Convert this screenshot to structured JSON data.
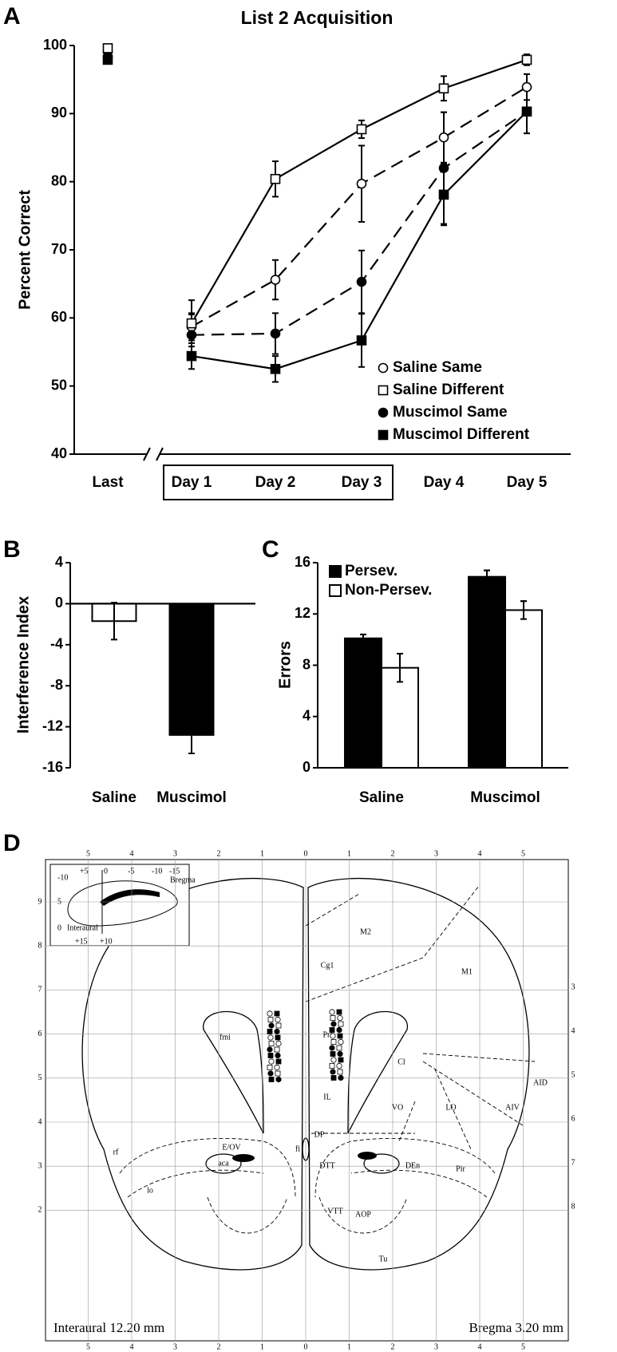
{
  "chart_data": [
    {
      "panel": "A",
      "type": "line",
      "title": "List 2 Acquisition",
      "ylabel": "Percent Correct",
      "categories": [
        "Last",
        "Day 1",
        "Day 2",
        "Day 3",
        "Day 4",
        "Day 5"
      ],
      "series": [
        {
          "name": "Saline Same",
          "color": "#000000",
          "marker": "circle",
          "filled": false,
          "linestyle": "dashed",
          "values": [
            99.1,
            58.7,
            65.6,
            79.7,
            86.5,
            93.9
          ],
          "errors": [
            0.5,
            2.0,
            2.9,
            5.6,
            3.7,
            1.9
          ]
        },
        {
          "name": "Saline Different",
          "color": "#000000",
          "marker": "square",
          "filled": false,
          "linestyle": "solid",
          "values": [
            99.6,
            59.2,
            80.4,
            87.7,
            93.7,
            97.9
          ],
          "errors": [
            0.4,
            3.4,
            2.6,
            1.3,
            1.8,
            0.8
          ]
        },
        {
          "name": "Muscimol Same",
          "color": "#000000",
          "marker": "circle",
          "filled": true,
          "linestyle": "dashed",
          "values": [
            98.3,
            57.5,
            57.7,
            65.3,
            82.0,
            90.3
          ],
          "errors": [
            0.5,
            3.0,
            3.0,
            4.6,
            8.2,
            3.2
          ]
        },
        {
          "name": "Muscimol Different",
          "color": "#000000",
          "marker": "square",
          "filled": true,
          "linestyle": "solid",
          "values": [
            97.9,
            54.4,
            52.5,
            56.7,
            78.1,
            90.3
          ],
          "errors": [
            0.4,
            1.9,
            1.9,
            3.9,
            4.5,
            3.2
          ]
        }
      ],
      "ylim": [
        40,
        100
      ],
      "yticks": [
        40,
        50,
        60,
        70,
        80,
        90,
        100
      ],
      "legend": "lower right"
    },
    {
      "panel": "B",
      "type": "bar",
      "ylabel": "Interference Index",
      "categories": [
        "Saline",
        "Muscimol"
      ],
      "values": [
        -1.7,
        -12.8
      ],
      "errors": [
        1.8,
        1.8
      ],
      "colors": [
        "#ffffff",
        "#000000"
      ],
      "ylim": [
        -16,
        4
      ],
      "yticks": [
        -16,
        -12,
        -8,
        -4,
        0,
        4
      ]
    },
    {
      "panel": "C",
      "type": "bar",
      "ylabel": "Errors",
      "categories": [
        "Saline",
        "Muscimol"
      ],
      "series": [
        {
          "name": "Persev.",
          "color": "#000000",
          "values": [
            10.1,
            14.9
          ],
          "errors": [
            0.3,
            0.5
          ]
        },
        {
          "name": "Non-Persev.",
          "color": "#ffffff",
          "values": [
            7.8,
            12.3
          ],
          "errors": [
            1.1,
            0.7
          ]
        }
      ],
      "ylim": [
        0,
        16
      ],
      "yticks": [
        0,
        4,
        8,
        12,
        16
      ],
      "legend": "upper left"
    }
  ],
  "atlas": {
    "panel": "D",
    "left_caption": "Interaural 12.20 mm",
    "right_caption": "Bregma 3.20 mm",
    "top_scale": [
      5,
      4,
      3,
      2,
      1,
      0,
      1,
      2,
      3,
      4,
      5
    ],
    "bottom_scale": [
      5,
      4,
      3,
      2,
      1,
      0,
      1,
      2,
      3,
      4,
      5
    ],
    "left_scale": [
      9,
      8,
      7,
      6,
      5,
      4,
      3,
      2
    ],
    "right_scale": [
      3,
      4,
      5,
      6,
      7,
      8
    ],
    "regions": [
      "M2",
      "Cg1",
      "M1",
      "fmi",
      "PrL",
      "Cl",
      "AID",
      "AIV",
      "LO",
      "VO",
      "IL",
      "DP",
      "rf",
      "E/OV",
      "aca",
      "DTT",
      "DEn",
      "Pir",
      "VTT",
      "AOP",
      "lo",
      "Tu",
      "fi"
    ],
    "inset": [
      "+5",
      "0",
      "-5",
      "-10",
      "-15",
      "Bregma",
      "-10",
      "5",
      "0",
      "Interaural",
      "+15",
      "+10"
    ]
  }
}
